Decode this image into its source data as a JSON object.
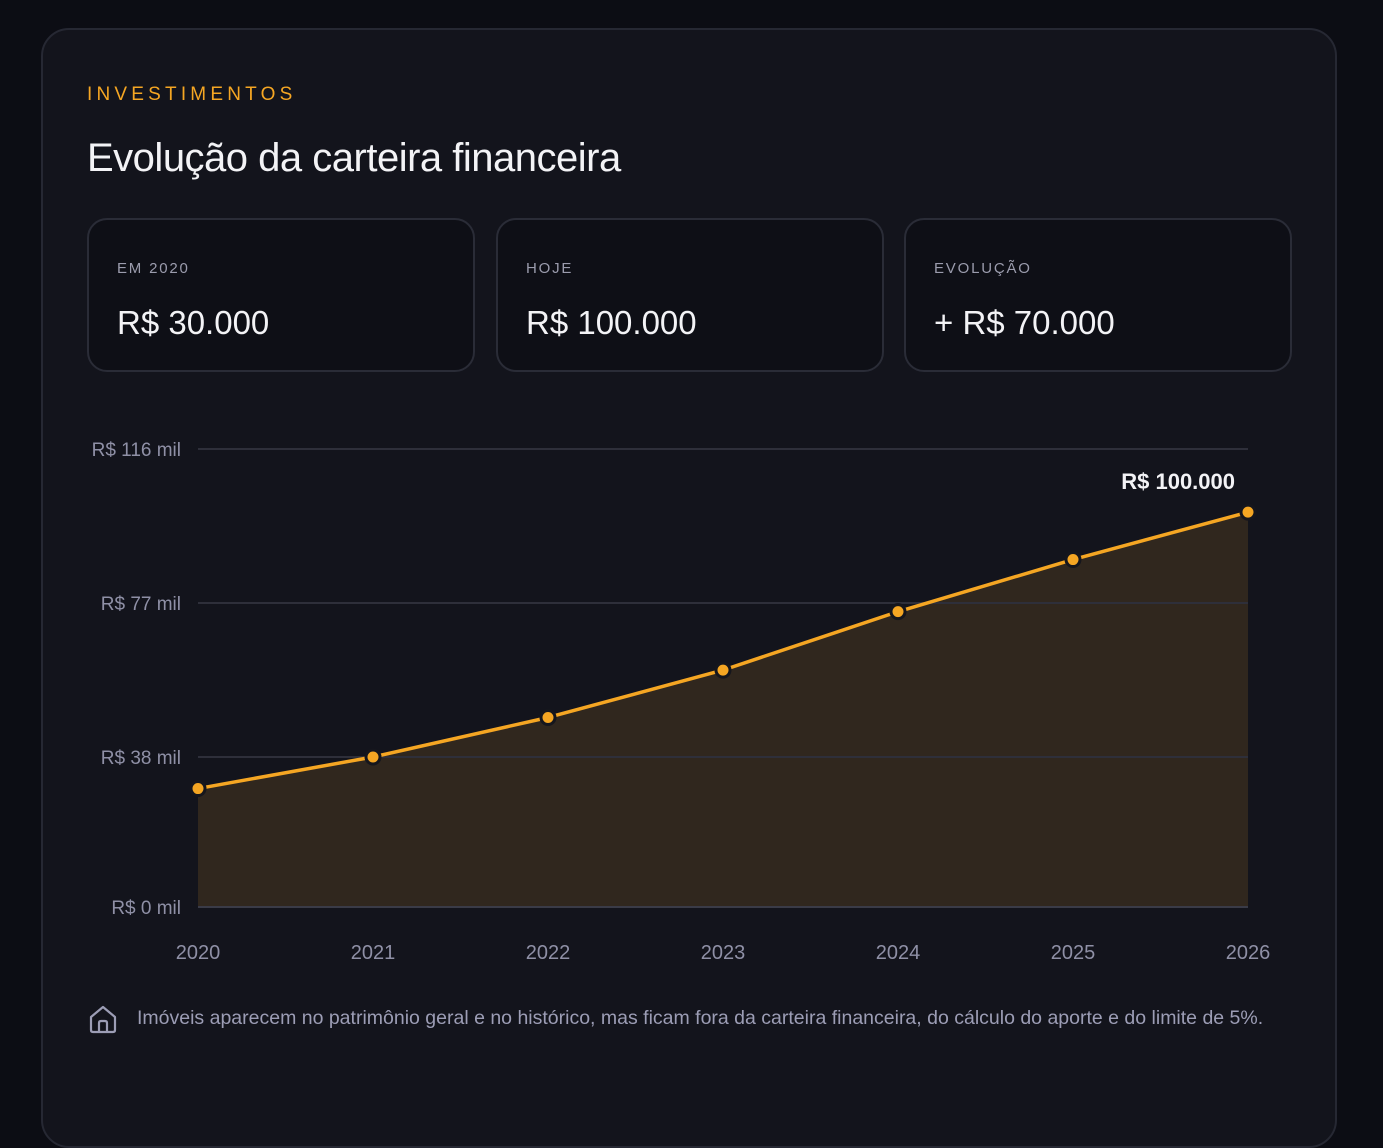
{
  "section": {
    "eyebrow": "INVESTIMENTOS",
    "title": "Evolução da carteira financeira"
  },
  "stats": [
    {
      "label": "EM 2020",
      "value": "R$ 30.000"
    },
    {
      "label": "HOJE",
      "value": "R$ 100.000"
    },
    {
      "label": "EVOLUÇÃO",
      "value": "+ R$ 70.000"
    }
  ],
  "colors": {
    "accent": "#f5a623",
    "background": "#0c0d14",
    "card": "#13141c",
    "area_fill": "#30271e",
    "text_primary": "#f3f3f6",
    "text_muted": "#9b9cad"
  },
  "chart_data": {
    "type": "area",
    "x": [
      "2020",
      "2021",
      "2022",
      "2023",
      "2024",
      "2025",
      "2026"
    ],
    "values": [
      30000,
      38000,
      48000,
      60000,
      74800,
      88000,
      100000
    ],
    "ylim": [
      0,
      116000
    ],
    "y_ticks": [
      0,
      38000,
      77000,
      116000
    ],
    "y_tick_labels": [
      "R$ 0 mil",
      "R$ 38 mil",
      "R$ 77 mil",
      "R$ 116 mil"
    ],
    "last_point_label": "R$ 100.000",
    "grid": true,
    "legend": "none",
    "title": "",
    "xlabel": "",
    "ylabel": ""
  },
  "footnote": {
    "icon": "home-icon",
    "text": "Imóveis aparecem no patrimônio geral e no histórico, mas ficam fora da carteira financeira, do cálculo do aporte e do limite de 5%."
  }
}
